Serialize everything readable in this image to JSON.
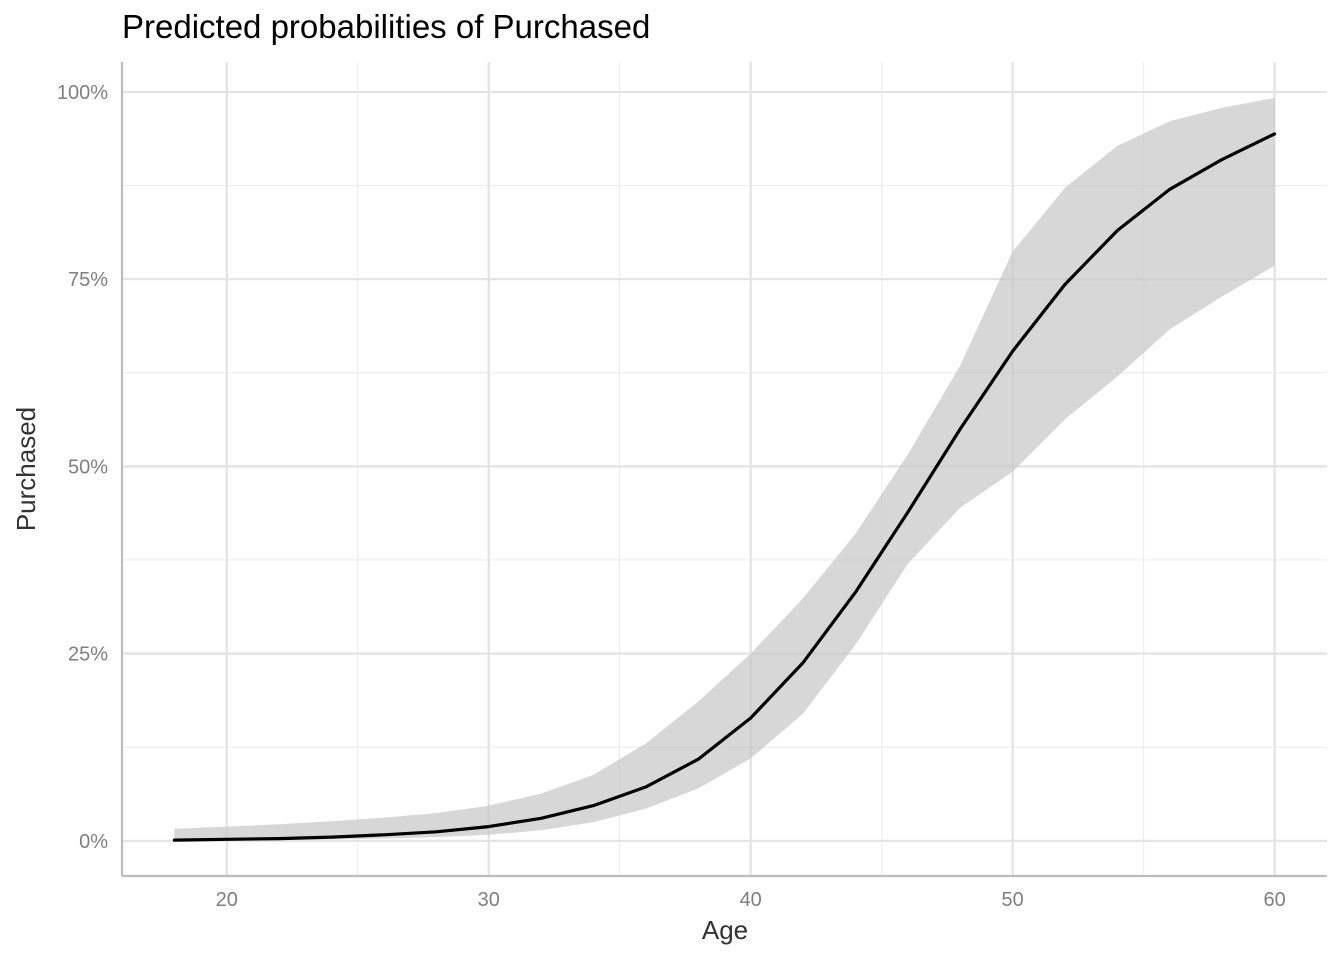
{
  "chart_data": {
    "type": "line",
    "title": "Predicted probabilities of Purchased",
    "xlabel": "Age",
    "ylabel": "Purchased",
    "xlim": [
      16,
      62
    ],
    "ylim": [
      -0.047,
      1.04
    ],
    "x_ticks": [
      20,
      30,
      40,
      50,
      60
    ],
    "x_tick_labels": [
      "20",
      "30",
      "40",
      "50",
      "60"
    ],
    "y_ticks": [
      0,
      0.25,
      0.5,
      0.75,
      1.0
    ],
    "y_tick_labels": [
      "0%",
      "25%",
      "50%",
      "75%",
      "100%"
    ],
    "grid": true,
    "legend": "none",
    "series": [
      {
        "color": "#000000",
        "ribbon_color": "#c8c8c8",
        "x": [
          18,
          20,
          22,
          24,
          26,
          28,
          30,
          32,
          34,
          36,
          38,
          40,
          42,
          44,
          46,
          48,
          50,
          52,
          54,
          56,
          58,
          60
        ],
        "y": [
          0.001,
          0.002,
          0.003,
          0.005,
          0.008,
          0.012,
          0.019,
          0.03,
          0.047,
          0.072,
          0.109,
          0.164,
          0.238,
          0.332,
          0.439,
          0.55,
          0.654,
          0.743,
          0.815,
          0.87,
          0.91,
          0.944
        ],
        "lower": [
          0.0,
          0.0,
          0.001,
          0.002,
          0.003,
          0.005,
          0.008,
          0.014,
          0.025,
          0.043,
          0.07,
          0.11,
          0.17,
          0.262,
          0.37,
          0.445,
          0.493,
          0.563,
          0.62,
          0.683,
          0.727,
          0.768
        ],
        "upper": [
          0.016,
          0.019,
          0.022,
          0.026,
          0.031,
          0.037,
          0.047,
          0.063,
          0.088,
          0.13,
          0.186,
          0.25,
          0.324,
          0.41,
          0.516,
          0.635,
          0.787,
          0.872,
          0.928,
          0.961,
          0.979,
          0.992
        ]
      }
    ]
  }
}
